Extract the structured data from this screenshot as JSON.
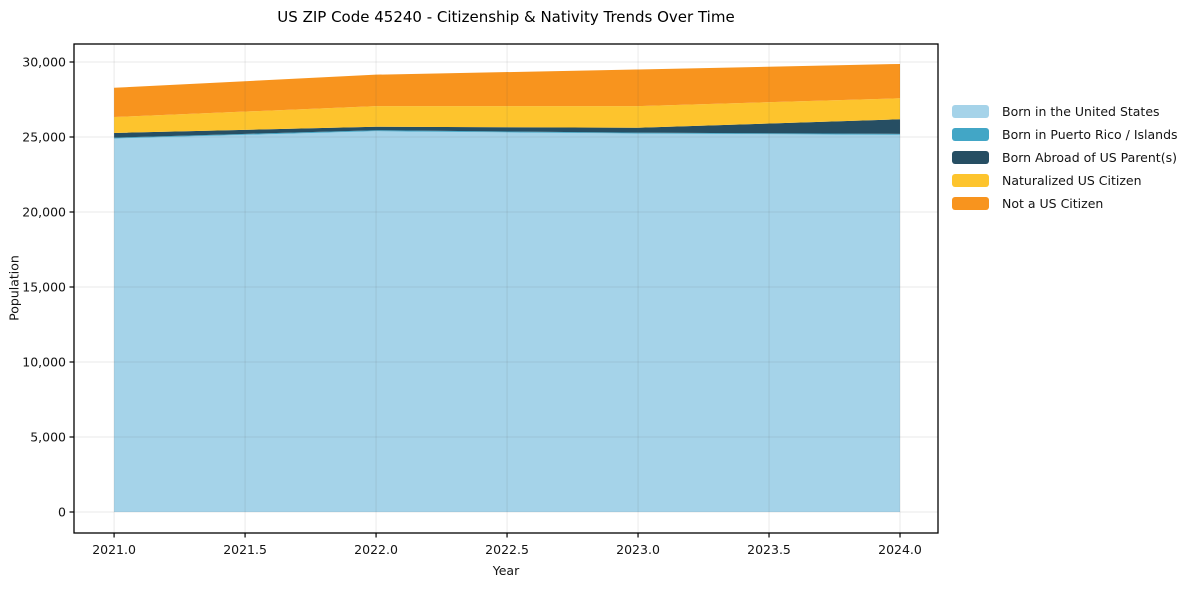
{
  "figure": {
    "background": "#ffffff",
    "spine_color": "#000000",
    "grid_color": "rgba(80,80,80,0.12)",
    "text_color": "#141414"
  },
  "chart_data": {
    "type": "area",
    "stacked": true,
    "title": "US ZIP Code 45240 - Citizenship & Nativity Trends Over Time",
    "xlabel": "Year",
    "ylabel": "Population",
    "grid": true,
    "legend_position": "right-outside",
    "x": [
      2021,
      2022,
      2023,
      2024
    ],
    "series": [
      {
        "name": "Born in the United States",
        "color": "#a5d3e9",
        "values": [
          24900,
          25390,
          25230,
          25150
        ]
      },
      {
        "name": "Born in Puerto Rico / Islands",
        "color": "#42a6c6",
        "values": [
          60,
          60,
          60,
          60
        ]
      },
      {
        "name": "Born Abroad of US Parent(s)",
        "color": "#264e63",
        "values": [
          310,
          235,
          330,
          970
        ]
      },
      {
        "name": "Naturalized US Citizen",
        "color": "#fdc42d",
        "values": [
          1060,
          1375,
          1440,
          1400
        ]
      },
      {
        "name": "Not a US Citizen",
        "color": "#f8941e",
        "values": [
          1950,
          2095,
          2440,
          2290
        ]
      }
    ],
    "totals": [
      28280,
      29155,
      29500,
      29870
    ],
    "x_tick_values": [
      2021,
      2021.5,
      2022,
      2022.5,
      2023,
      2023.5,
      2024
    ],
    "x_ticks": [
      "2021.0",
      "2021.5",
      "2022.0",
      "2022.5",
      "2023.0",
      "2023.5",
      "2024.0"
    ],
    "y_tick_values": [
      0,
      5000,
      10000,
      15000,
      20000,
      25000,
      30000
    ],
    "y_ticks": [
      "0",
      "5,000",
      "10,000",
      "15,000",
      "20,000",
      "25,000",
      "30,000"
    ],
    "xlim": [
      2020.847,
      2024.145
    ],
    "ylim": [
      -1400,
      31200
    ]
  }
}
